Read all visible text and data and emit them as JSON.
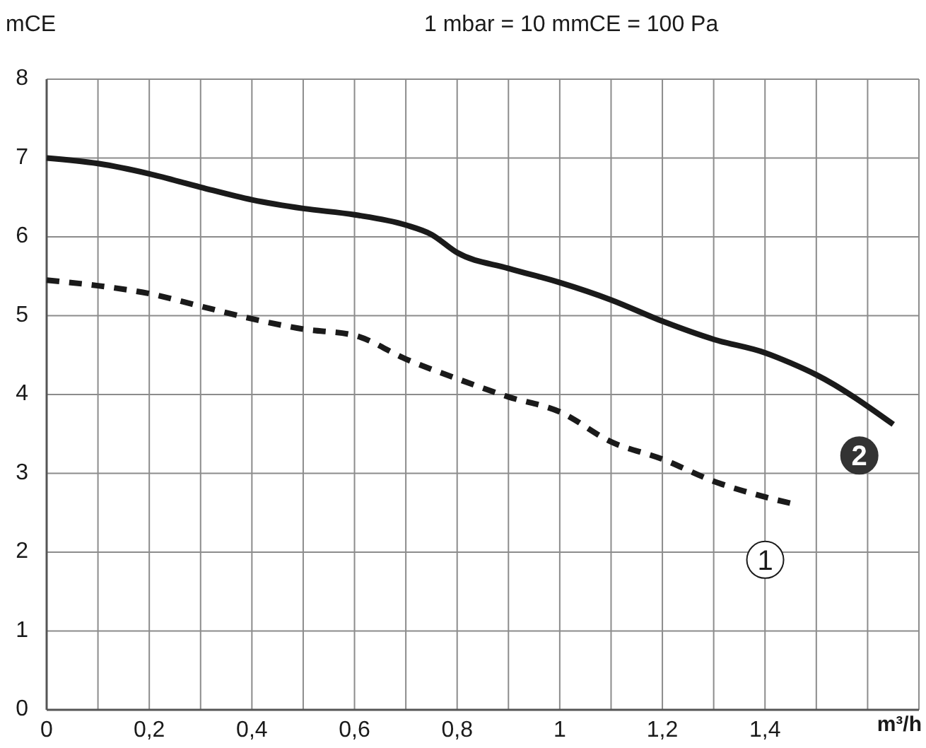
{
  "chart_data": {
    "type": "line",
    "ylabel": "mCE",
    "xlabel": "m³/h",
    "annotations": [
      "1 mbar = 10 mmCE = 100 Pa"
    ],
    "xlim": [
      0,
      1.7
    ],
    "ylim": [
      0,
      8
    ],
    "xticks": [
      0,
      {
        "value": 0.1,
        "label": null
      },
      {
        "value": 0.2,
        "label": "0,2"
      },
      {
        "value": 0.3,
        "label": null
      },
      {
        "value": 0.4,
        "label": "0,4"
      },
      {
        "value": 0.5,
        "label": null
      },
      {
        "value": 0.6,
        "label": "0,6"
      },
      {
        "value": 0.7,
        "label": null
      },
      {
        "value": 0.8,
        "label": "0,8"
      },
      {
        "value": 0.9,
        "label": null
      },
      1,
      {
        "value": 1.1,
        "label": null
      },
      {
        "value": 1.2,
        "label": "1,2"
      },
      {
        "value": 1.3,
        "label": null
      },
      {
        "value": 1.4,
        "label": "1,4"
      },
      {
        "value": 1.5,
        "label": null
      },
      {
        "value": 1.6,
        "label": null
      },
      {
        "value": 1.7,
        "label": null
      }
    ],
    "yticks": [
      0,
      1,
      2,
      3,
      4,
      5,
      6,
      7,
      8
    ],
    "grid": true,
    "series": [
      {
        "name": "1",
        "color": "#1a1a1a",
        "line_style": "dashed",
        "x": [
          0,
          0.1,
          0.2,
          0.3,
          0.4,
          0.5,
          0.6,
          0.7,
          0.8,
          0.9,
          1.0,
          1.1,
          1.2,
          1.3,
          1.4,
          1.45
        ],
        "values": [
          5.45,
          5.38,
          5.28,
          5.12,
          4.96,
          4.83,
          4.75,
          4.45,
          4.2,
          3.97,
          3.78,
          3.4,
          3.18,
          2.9,
          2.7,
          2.62
        ]
      },
      {
        "name": "2",
        "color": "#1a1a1a",
        "line_style": "solid",
        "x": [
          0,
          0.1,
          0.2,
          0.3,
          0.4,
          0.5,
          0.6,
          0.7,
          0.75,
          0.8,
          0.9,
          1.0,
          1.1,
          1.2,
          1.3,
          1.4,
          1.45,
          1.5,
          1.65
        ],
        "values": [
          7.0,
          6.93,
          6.8,
          6.63,
          6.47,
          6.36,
          6.28,
          6.15,
          6.03,
          5.8,
          5.6,
          5.42,
          5.2,
          4.93,
          4.7,
          4.53,
          4.4,
          4.25,
          3.62
        ]
      }
    ]
  }
}
